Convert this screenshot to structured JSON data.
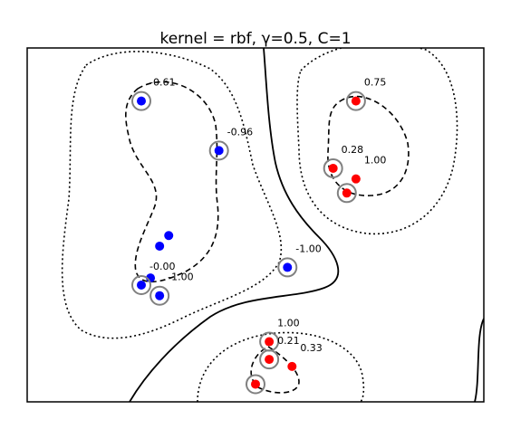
{
  "chart_data": {
    "type": "scatter",
    "title": "kernel = rbf, γ=0.5, C=1",
    "xlabel": "",
    "ylabel": "",
    "xlim": [
      0,
      10
    ],
    "ylim": [
      0,
      10
    ],
    "grid": false,
    "legend": "none",
    "colors": {
      "class_negative": "#0000ff",
      "class_positive": "#ff0000",
      "support_ring": "#808080",
      "contour": "#000000"
    },
    "contour_levels": [
      {
        "level": -1,
        "style": "dotted"
      },
      {
        "level": 0,
        "style": "solid"
      },
      {
        "level": 1,
        "style": "dashed"
      }
    ],
    "series": [
      {
        "points": [
          {
            "x": 2.5,
            "y": 8.5,
            "support_vector": true,
            "label": "-0.61"
          },
          {
            "x": 4.2,
            "y": 7.1,
            "support_vector": true,
            "label": "-0.96"
          },
          {
            "x": 3.1,
            "y": 4.7,
            "support_vector": false,
            "label": ""
          },
          {
            "x": 2.9,
            "y": 4.4,
            "support_vector": false,
            "label": ""
          },
          {
            "x": 2.7,
            "y": 3.5,
            "support_vector": false,
            "label": ""
          },
          {
            "x": 2.5,
            "y": 3.3,
            "support_vector": true,
            "label": "-0.00"
          },
          {
            "x": 2.9,
            "y": 3.0,
            "support_vector": true,
            "label": "-1.00"
          },
          {
            "x": 5.7,
            "y": 3.8,
            "support_vector": true,
            "label": "-1.00"
          }
        ]
      },
      {
        "points": [
          {
            "x": 7.2,
            "y": 8.5,
            "support_vector": true,
            "label": "0.75"
          },
          {
            "x": 6.7,
            "y": 6.6,
            "support_vector": true,
            "label": "0.28"
          },
          {
            "x": 7.2,
            "y": 6.3,
            "support_vector": false,
            "label": "1.00"
          },
          {
            "x": 7.0,
            "y": 5.9,
            "support_vector": true,
            "label": ""
          },
          {
            "x": 5.3,
            "y": 1.7,
            "support_vector": true,
            "label": "1.00"
          },
          {
            "x": 5.3,
            "y": 1.2,
            "support_vector": true,
            "label": "0.21"
          },
          {
            "x": 5.8,
            "y": 1.0,
            "support_vector": false,
            "label": "0.33"
          },
          {
            "x": 5.0,
            "y": 0.5,
            "support_vector": true,
            "label": ""
          }
        ]
      }
    ]
  }
}
